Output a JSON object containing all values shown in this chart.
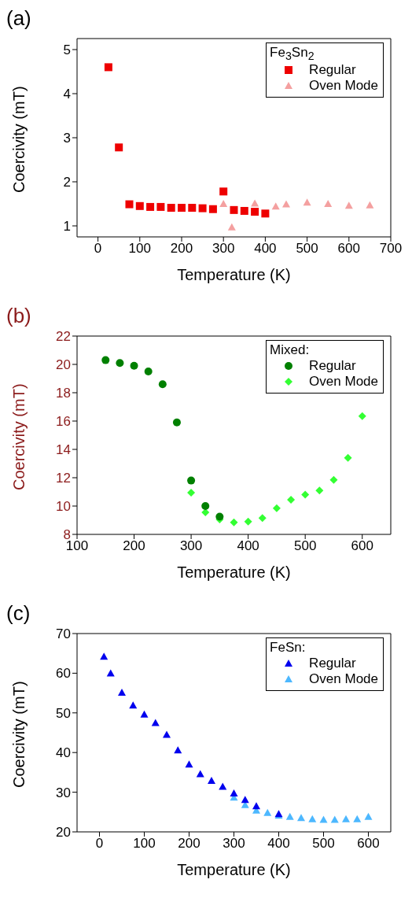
{
  "chart_data": [
    {
      "type": "scatter",
      "annotations": [
        "(a)"
      ],
      "xlabel": "Temperature (K)",
      "ylabel": "Coercivity (mT)",
      "legend_title": "Fe$_{3}$Sn$_{2}$",
      "legend": "top right",
      "xlim": [
        -50,
        700
      ],
      "ylim": [
        0.75,
        5.25
      ],
      "xticks": [
        0,
        100,
        200,
        300,
        400,
        500,
        600,
        700
      ],
      "yticks": [
        1,
        2,
        3,
        4,
        5
      ],
      "grid": false,
      "series": [
        {
          "name": "Regular",
          "color": "#ee0000",
          "marker": "square",
          "x": [
            25,
            50,
            75,
            100,
            125,
            150,
            175,
            200,
            225,
            250,
            275,
            300,
            325,
            350,
            375,
            400
          ],
          "values": [
            4.6,
            2.78,
            1.49,
            1.45,
            1.43,
            1.43,
            1.41,
            1.41,
            1.41,
            1.4,
            1.38,
            1.78,
            1.36,
            1.34,
            1.32,
            1.28
          ]
        },
        {
          "name": "Oven Mode",
          "color": "#f4a0a0",
          "marker": "triangle",
          "x": [
            300,
            320,
            375,
            425,
            450,
            500,
            550,
            600,
            650
          ],
          "values": [
            1.5,
            0.97,
            1.51,
            1.44,
            1.49,
            1.53,
            1.5,
            1.46,
            1.47
          ]
        }
      ]
    },
    {
      "type": "scatter",
      "annotations": [
        "(b)"
      ],
      "xlabel": "Temperature (K)",
      "ylabel": "Coercivity (mT)",
      "legend_title": "Mixed:",
      "legend": "top right",
      "xlim": [
        100,
        650
      ],
      "ylim": [
        8,
        22
      ],
      "xticks": [
        100,
        200,
        300,
        400,
        500,
        600
      ],
      "yticks": [
        8,
        10,
        12,
        14,
        16,
        18,
        20,
        22
      ],
      "grid": false,
      "series": [
        {
          "name": "Regular",
          "color": "#008000",
          "marker": "circle",
          "x": [
            150,
            175,
            200,
            225,
            250,
            275,
            300,
            325,
            350
          ],
          "values": [
            20.3,
            20.1,
            19.9,
            19.5,
            18.6,
            15.9,
            11.8,
            10.0,
            9.25
          ]
        },
        {
          "name": "Oven Mode",
          "color": "#33ff33",
          "marker": "diamond",
          "x": [
            300,
            325,
            350,
            375,
            400,
            425,
            450,
            475,
            500,
            525,
            550,
            575,
            600
          ],
          "values": [
            10.95,
            9.55,
            9.05,
            8.85,
            8.9,
            9.15,
            9.85,
            10.45,
            10.8,
            11.1,
            11.85,
            13.4,
            16.35
          ]
        }
      ]
    },
    {
      "type": "scatter",
      "annotations": [
        "(c)"
      ],
      "xlabel": "Temperature (K)",
      "ylabel": "Coercivity (mT)",
      "legend_title": "FeSn:",
      "legend": "top right",
      "xlim": [
        -50,
        650
      ],
      "ylim": [
        20,
        70
      ],
      "xticks": [
        0,
        100,
        200,
        300,
        400,
        500,
        600
      ],
      "yticks": [
        20,
        30,
        40,
        50,
        60,
        70
      ],
      "grid": false,
      "series": [
        {
          "name": "Regular",
          "color": "#0000ee",
          "marker": "triangle",
          "x": [
            10,
            25,
            50,
            75,
            100,
            125,
            150,
            175,
            200,
            225,
            250,
            275,
            300,
            325,
            350,
            400
          ],
          "values": [
            64.2,
            60.0,
            55.1,
            51.9,
            49.6,
            47.5,
            44.5,
            40.6,
            37.0,
            34.6,
            32.9,
            31.4,
            29.7,
            28.1,
            26.5,
            24.5
          ]
        },
        {
          "name": "Oven Mode",
          "color": "#4db8ff",
          "marker": "triangle",
          "x": [
            300,
            325,
            350,
            375,
            400,
            425,
            450,
            475,
            500,
            525,
            550,
            575,
            600
          ],
          "values": [
            28.7,
            26.8,
            25.4,
            24.8,
            24.1,
            23.8,
            23.5,
            23.2,
            23.1,
            23.1,
            23.2,
            23.2,
            23.8
          ]
        }
      ]
    }
  ]
}
